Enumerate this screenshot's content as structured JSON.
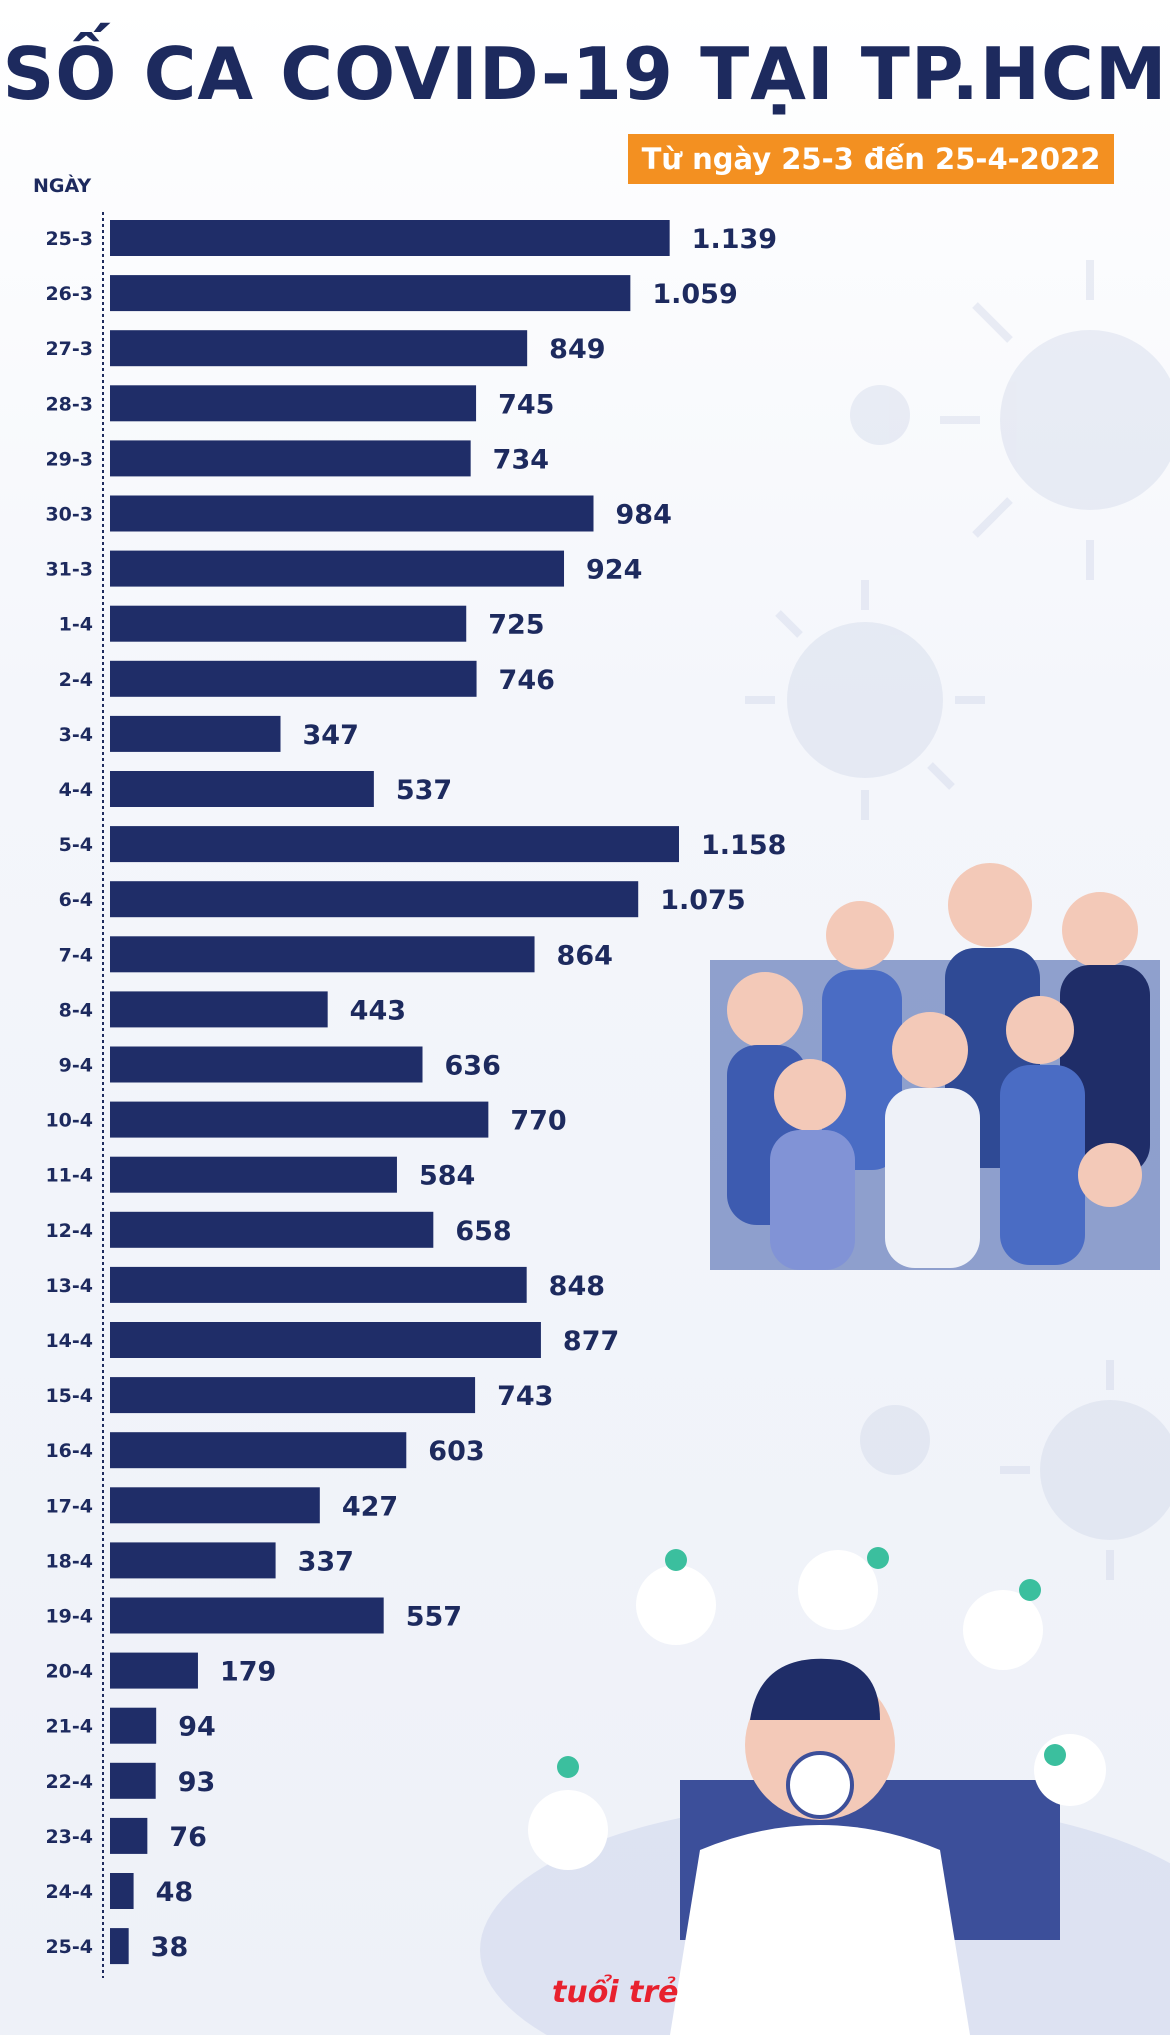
{
  "title": "SỐ CA COVID-19 TẠI TP.HCM",
  "subtitle": "Từ ngày 25-3 đến 25-4-2022",
  "colors": {
    "bar": "#1f2d68",
    "text": "#1d2a5e",
    "accent": "#f39021",
    "logo": "#e8212e"
  },
  "chart_data": {
    "type": "bar",
    "orientation": "horizontal",
    "xlabel": "",
    "ylabel": "NGÀY",
    "title": "SỐ CA COVID-19 TẠI TP.HCM",
    "subtitle": "Từ ngày 25-3 đến 25-4-2022",
    "grid": false,
    "categories": [
      "25-3",
      "26-3",
      "27-3",
      "28-3",
      "29-3",
      "30-3",
      "31-3",
      "1-4",
      "2-4",
      "3-4",
      "4-4",
      "5-4",
      "6-4",
      "7-4",
      "8-4",
      "9-4",
      "10-4",
      "11-4",
      "12-4",
      "13-4",
      "14-4",
      "15-4",
      "16-4",
      "17-4",
      "18-4",
      "19-4",
      "20-4",
      "21-4",
      "22-4",
      "23-4",
      "24-4",
      "25-4"
    ],
    "values": [
      1139,
      1059,
      849,
      745,
      734,
      984,
      924,
      725,
      746,
      347,
      537,
      1158,
      1075,
      864,
      443,
      636,
      770,
      584,
      658,
      848,
      877,
      743,
      603,
      427,
      337,
      557,
      179,
      94,
      93,
      76,
      48,
      38
    ],
    "value_labels": [
      "1.139",
      "1.059",
      "849",
      "745",
      "734",
      "984",
      "924",
      "725",
      "746",
      "347",
      "537",
      "1.158",
      "1.075",
      "864",
      "443",
      "636",
      "770",
      "584",
      "658",
      "848",
      "877",
      "743",
      "603",
      "427",
      "337",
      "557",
      "179",
      "94",
      "93",
      "76",
      "48",
      "38"
    ]
  },
  "logo_text": "tuổi trẻ"
}
